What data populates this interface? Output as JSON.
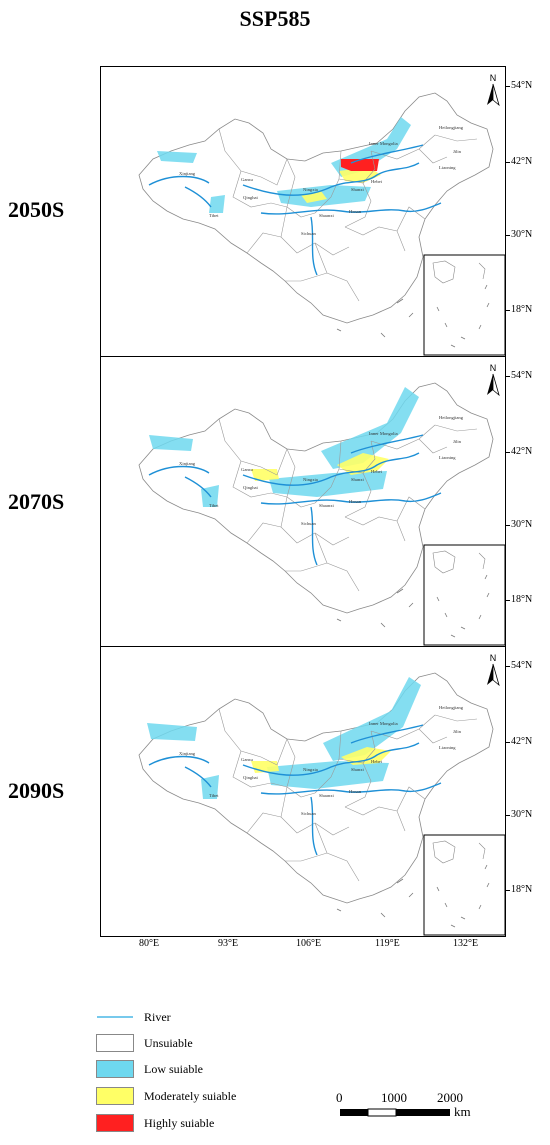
{
  "title": "SSP585",
  "panels": [
    {
      "period": "2050S"
    },
    {
      "period": "2070S"
    },
    {
      "period": "2090S"
    }
  ],
  "lat_ticks": [
    "54°N",
    "42°N",
    "30°N",
    "18°N"
  ],
  "lon_ticks": [
    "80°E",
    "93°E",
    "106°E",
    "119°E",
    "132°E"
  ],
  "north_arrow": "N",
  "province_labels": [
    "Heilongjiang",
    "Jilin",
    "Inner Mongolia",
    "Liaoning",
    "Xinjiang",
    "Gansu",
    "Qinghai",
    "Ningxia",
    "Shanxi",
    "Hebei",
    "Shaanxi",
    "Henan",
    "Tibet",
    "Sichuan"
  ],
  "legend": [
    {
      "label": "River",
      "color": "#4ab7e6",
      "kind": "line"
    },
    {
      "label": "Unsuiable",
      "color": "#ffffff",
      "kind": "box"
    },
    {
      "label": "Low suiable",
      "color": "#6ed8ef",
      "kind": "box"
    },
    {
      "label": "Moderately suiable",
      "color": "#ffff66",
      "kind": "box"
    },
    {
      "label": "Highly suiable",
      "color": "#ff2020",
      "kind": "box"
    }
  ],
  "scale": {
    "ticks": [
      "0",
      "1000",
      "2000"
    ],
    "unit": "km"
  }
}
